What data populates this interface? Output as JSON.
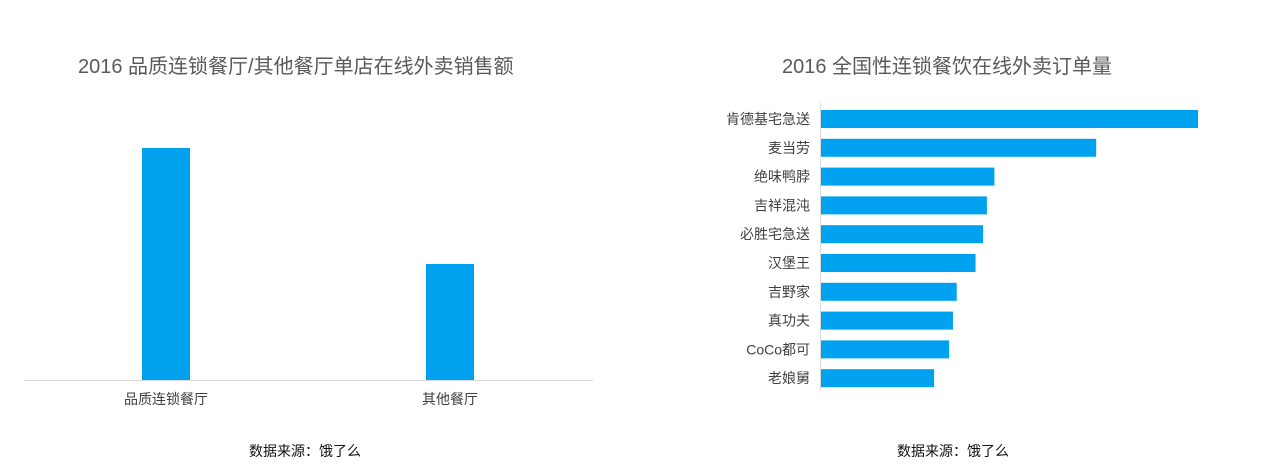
{
  "colors": {
    "bar": "#00A2F0",
    "axis": "#d9d9d9",
    "text": "#404040"
  },
  "chart_data": [
    {
      "type": "bar",
      "orientation": "vertical",
      "title": "2016 品质连锁餐厅/其他餐厅单店在线外卖销售额",
      "categories": [
        "品质连锁餐厅",
        "其他餐厅"
      ],
      "values": [
        100,
        50
      ],
      "source": "数据来源：饿了么",
      "grid": false
    },
    {
      "type": "bar",
      "orientation": "horizontal",
      "title": "2016 全国性连锁餐饮在线外卖订单量",
      "categories": [
        "肯德基宅急送",
        "麦当劳",
        "绝味鸭脖",
        "吉祥混沌",
        "必胜宅急送",
        "汉堡王",
        "吉野家",
        "真功夫",
        "CoCo都可",
        "老娘舅"
      ],
      "values": [
        100,
        73,
        46,
        44,
        43,
        41,
        36,
        35,
        34,
        30
      ],
      "source": "数据来源：饿了么",
      "grid": false
    }
  ]
}
